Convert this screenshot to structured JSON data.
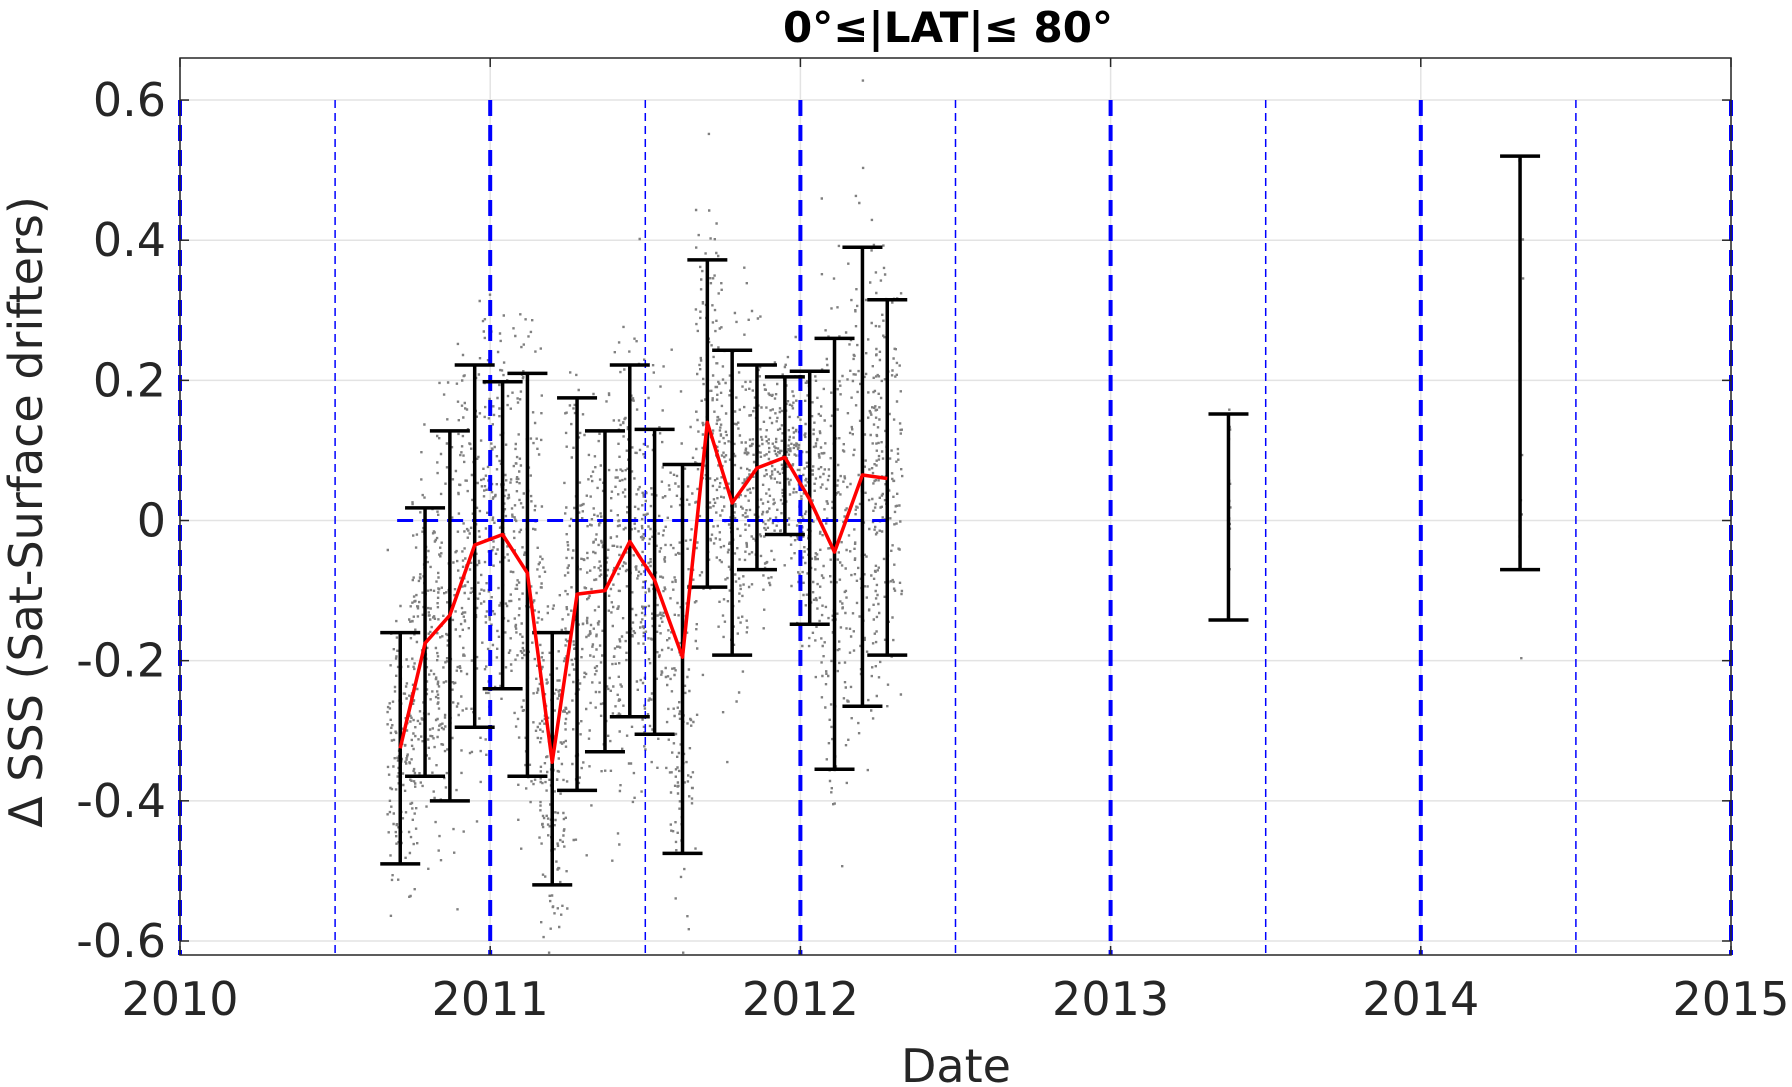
{
  "chart_data": {
    "type": "scatter",
    "title": "0°≤|LAT|≤ 80°",
    "xlabel": "Date",
    "ylabel": "Δ SSS (Sat-Surface drifters)",
    "xlim": [
      2010,
      2015
    ],
    "ylim": [
      -0.62,
      0.66
    ],
    "x_ticks": [
      "2010",
      "2011",
      "2012",
      "2013",
      "2014",
      "2015"
    ],
    "y_ticks": [
      "0.6",
      "0.4",
      "0.2",
      "0",
      "-0.2",
      "-0.4",
      "-0.6"
    ],
    "grid": true,
    "colors": {
      "mean_line": "#ff0000",
      "error_bars": "#000000",
      "scatter": "#808080",
      "reference_lines": "#0000ff"
    },
    "reference_lines": {
      "zero_line": {
        "y": 0,
        "x_range": [
          2010.7,
          2012.3
        ],
        "style": "dashed"
      },
      "year_lines": [
        2010,
        2011,
        2012,
        2013,
        2014,
        2015
      ],
      "half_year_lines": [
        2010.5,
        2011.5,
        2012.5,
        2013.5,
        2014.5
      ]
    },
    "series": [
      {
        "type": "errorbar",
        "x": [
          2010.71,
          2010.79,
          2010.87,
          2010.95,
          2011.04,
          2011.12,
          2011.2,
          2011.28,
          2011.37,
          2011.45,
          2011.53,
          2011.62,
          2011.7,
          2011.78,
          2011.86,
          2011.95,
          2012.03,
          2012.11,
          2012.2,
          2012.28,
          2013.38,
          2014.32
        ],
        "mean": [
          -0.325,
          -0.175,
          -0.135,
          -0.035,
          -0.02,
          -0.075,
          -0.345,
          -0.105,
          -0.1,
          -0.03,
          -0.085,
          -0.195,
          0.14,
          0.025,
          0.075,
          0.09,
          0.03,
          -0.045,
          0.065,
          0.06,
          null,
          null
        ],
        "upper": [
          -0.16,
          0.018,
          0.128,
          0.222,
          0.198,
          0.21,
          -0.16,
          0.175,
          0.128,
          0.222,
          0.13,
          0.08,
          0.372,
          0.243,
          0.222,
          0.205,
          0.213,
          0.26,
          0.39,
          0.315,
          0.152,
          0.52
        ],
        "lower": [
          -0.49,
          -0.365,
          -0.4,
          -0.295,
          -0.24,
          -0.365,
          -0.52,
          -0.385,
          -0.33,
          -0.28,
          -0.305,
          -0.475,
          -0.095,
          -0.192,
          -0.07,
          -0.02,
          -0.148,
          -0.355,
          -0.265,
          -0.192,
          -0.142,
          -0.07
        ]
      }
    ]
  }
}
